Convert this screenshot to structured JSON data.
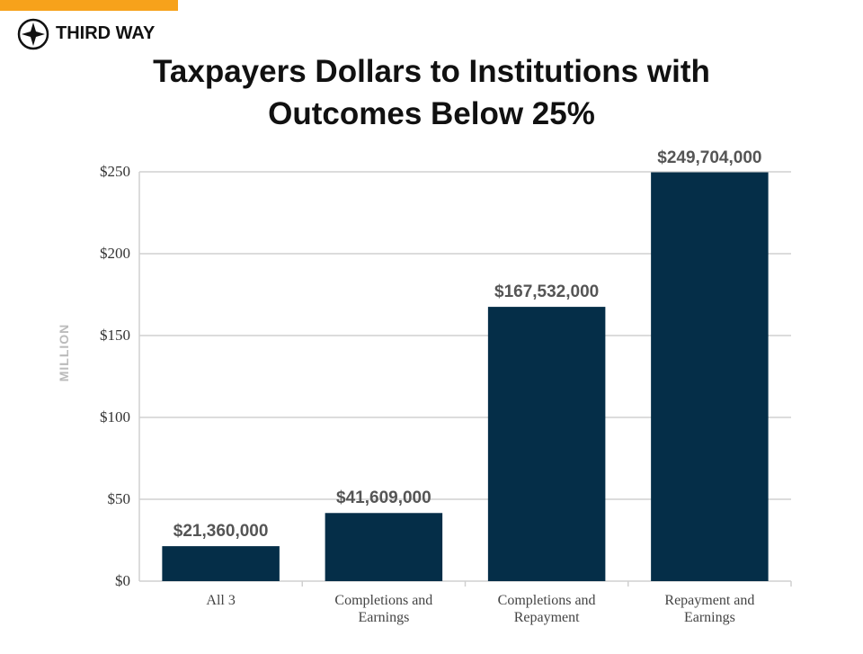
{
  "brand": "THIRD WAY",
  "chart_data": {
    "type": "bar",
    "title": "Taxpayers Dollars to Institutions with Outcomes Below 25%",
    "y_label": "MILLION",
    "categories": [
      "All 3",
      "Completions and Earnings",
      "Completions and Repayment",
      "Repayment and Earnings"
    ],
    "values": [
      21.36,
      41.609,
      167.532,
      249.704
    ],
    "value_labels": [
      "$21,360,000",
      "$41,609,000",
      "$167,532,000",
      "$249,704,000"
    ],
    "color": "#052e48",
    "ylim": [
      0,
      250
    ],
    "yticks": [
      {
        "value": 0,
        "label": "$0"
      },
      {
        "value": 50,
        "label": "$50"
      },
      {
        "value": 100,
        "label": "$100"
      },
      {
        "value": 150,
        "label": "$150"
      },
      {
        "value": 200,
        "label": "$200"
      },
      {
        "value": 250,
        "label": "$250"
      }
    ],
    "grid": true
  }
}
